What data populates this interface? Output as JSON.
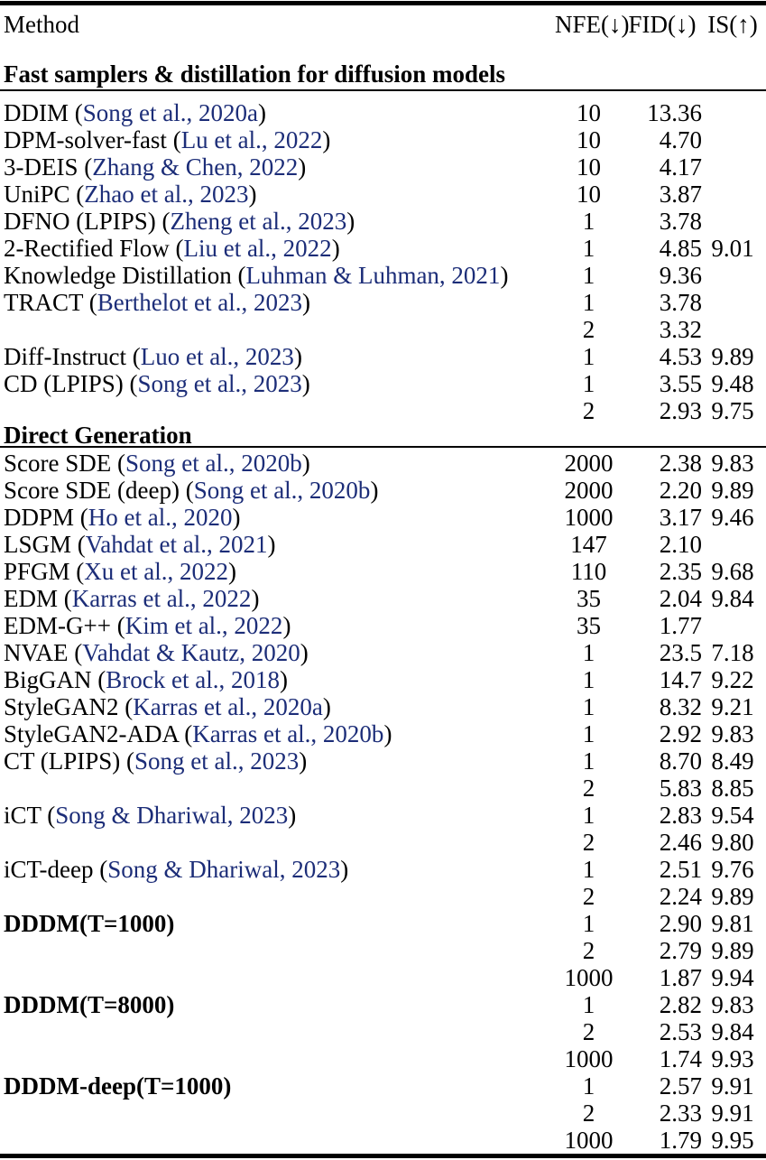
{
  "table": {
    "link_color": "#1c2d78",
    "columns": {
      "method": "Method",
      "nfe": "NFE(↓)",
      "fid": "FID(↓)",
      "is": "IS(↑)"
    },
    "sections": [
      {
        "title": "Fast samplers & distillation for diffusion models",
        "rows": [
          {
            "method": "DDIM",
            "cite": "Song et al., 2020a",
            "nfe": "10",
            "fid": "13.36",
            "is": ""
          },
          {
            "method": "DPM-solver-fast",
            "cite": "Lu et al., 2022",
            "nfe": "10",
            "fid": "4.70",
            "is": ""
          },
          {
            "method": "3-DEIS",
            "cite": "Zhang & Chen, 2022",
            "nfe": "10",
            "fid": "4.17",
            "is": ""
          },
          {
            "method": "UniPC",
            "cite": "Zhao et al., 2023",
            "nfe": "10",
            "fid": "3.87",
            "is": ""
          },
          {
            "method": "DFNO (LPIPS)",
            "cite": "Zheng et al., 2023",
            "nfe": "1",
            "fid": "3.78",
            "is": ""
          },
          {
            "method": "2-Rectified Flow",
            "cite": "Liu et al., 2022",
            "nfe": "1",
            "fid": "4.85",
            "is": "9.01"
          },
          {
            "method": "Knowledge Distillation",
            "cite": "Luhman & Luhman, 2021",
            "nfe": "1",
            "fid": "9.36",
            "is": ""
          },
          {
            "method": "TRACT",
            "cite": "Berthelot et al., 2023",
            "nfe": "1",
            "fid": "3.78",
            "is": ""
          },
          {
            "method": "",
            "cite": "",
            "nfe": "2",
            "fid": "3.32",
            "is": ""
          },
          {
            "method": "Diff-Instruct",
            "cite": "Luo et al., 2023",
            "nfe": "1",
            "fid": "4.53",
            "is": "9.89"
          },
          {
            "method": "CD (LPIPS)",
            "cite": "Song et al., 2023",
            "nfe": "1",
            "fid": "3.55",
            "is": "9.48"
          },
          {
            "method": "",
            "cite": "",
            "nfe": "2",
            "fid": "2.93",
            "is": "9.75"
          }
        ]
      },
      {
        "title": "Direct Generation",
        "rows": [
          {
            "method": "Score SDE",
            "cite": "Song et al., 2020b",
            "nfe": "2000",
            "fid": "2.38",
            "is": "9.83"
          },
          {
            "method": "Score SDE (deep)",
            "cite": "Song et al., 2020b",
            "nfe": "2000",
            "fid": "2.20",
            "is": "9.89"
          },
          {
            "method": "DDPM",
            "cite": "Ho et al., 2020",
            "nfe": "1000",
            "fid": "3.17",
            "is": "9.46"
          },
          {
            "method": "LSGM",
            "cite": "Vahdat et al., 2021",
            "nfe": "147",
            "fid": "2.10",
            "is": ""
          },
          {
            "method": "PFGM",
            "cite": "Xu et al., 2022",
            "nfe": "110",
            "fid": "2.35",
            "is": "9.68"
          },
          {
            "method": "EDM",
            "cite": "Karras et al., 2022",
            "nfe": "35",
            "fid": "2.04",
            "is": "9.84"
          },
          {
            "method": "EDM-G++",
            "cite": "Kim et al., 2022",
            "nfe": "35",
            "fid": "1.77",
            "is": ""
          },
          {
            "method": "NVAE",
            "cite": "Vahdat & Kautz, 2020",
            "nfe": "1",
            "fid": "23.5",
            "is": "7.18"
          },
          {
            "method": "BigGAN",
            "cite": "Brock et al., 2018",
            "nfe": "1",
            "fid": "14.7",
            "is": "9.22"
          },
          {
            "method": "StyleGAN2",
            "cite": "Karras et al., 2020a",
            "nfe": "1",
            "fid": "8.32",
            "is": "9.21"
          },
          {
            "method": "StyleGAN2-ADA",
            "cite": "Karras et al., 2020b",
            "nfe": "1",
            "fid": "2.92",
            "is": "9.83"
          },
          {
            "method": "CT (LPIPS)",
            "cite": "Song et al., 2023",
            "nfe": "1",
            "fid": "8.70",
            "is": "8.49"
          },
          {
            "method": "",
            "cite": "",
            "nfe": "2",
            "fid": "5.83",
            "is": "8.85"
          },
          {
            "method": "iCT",
            "cite": "Song & Dhariwal, 2023",
            "nfe": "1",
            "fid": "2.83",
            "is": "9.54"
          },
          {
            "method": "",
            "cite": "",
            "nfe": "2",
            "fid": "2.46",
            "is": "9.80"
          },
          {
            "method": "iCT-deep",
            "cite": "Song & Dhariwal, 2023",
            "nfe": "1",
            "fid": "2.51",
            "is": "9.76"
          },
          {
            "method": "",
            "cite": "",
            "nfe": "2",
            "fid": "2.24",
            "is": "9.89"
          },
          {
            "method": "DDDM(T=1000)",
            "cite": "",
            "bold": true,
            "nfe": "1",
            "fid": "2.90",
            "is": "9.81"
          },
          {
            "method": "",
            "cite": "",
            "nfe": "2",
            "fid": "2.79",
            "is": "9.89"
          },
          {
            "method": "",
            "cite": "",
            "nfe": "1000",
            "fid": "1.87",
            "is": "9.94"
          },
          {
            "method": "DDDM(T=8000)",
            "cite": "",
            "bold": true,
            "nfe": "1",
            "fid": "2.82",
            "is": "9.83"
          },
          {
            "method": "",
            "cite": "",
            "nfe": "2",
            "fid": "2.53",
            "is": "9.84"
          },
          {
            "method": "",
            "cite": "",
            "nfe": "1000",
            "fid": "1.74",
            "is": "9.93"
          },
          {
            "method": "DDDM-deep(T=1000)",
            "cite": "",
            "bold": true,
            "nfe": "1",
            "fid": "2.57",
            "is": "9.91"
          },
          {
            "method": "",
            "cite": "",
            "nfe": "2",
            "fid": "2.33",
            "is": "9.91"
          },
          {
            "method": "",
            "cite": "",
            "nfe": "1000",
            "fid": "1.79",
            "is": "9.95"
          }
        ]
      }
    ]
  }
}
